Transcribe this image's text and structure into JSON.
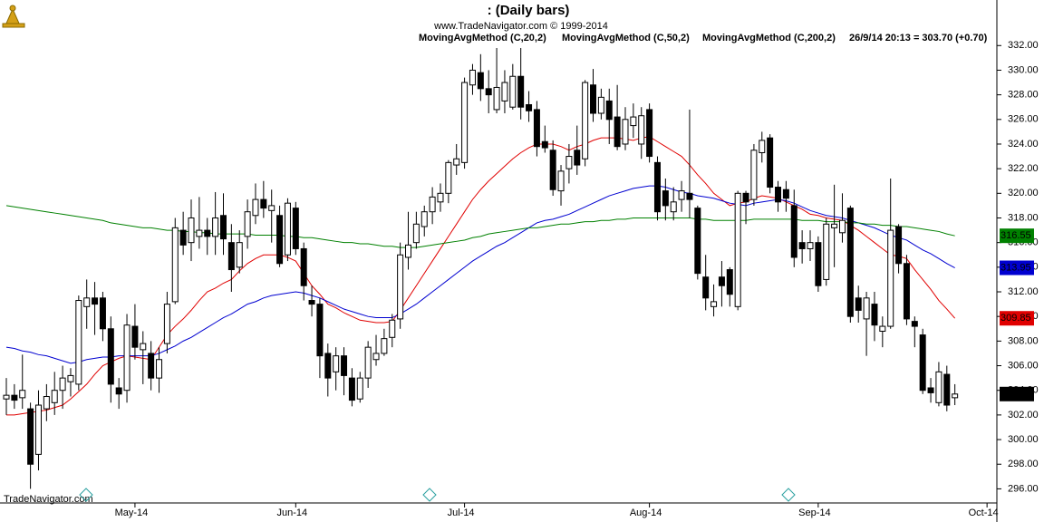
{
  "chart_data": {
    "type": "candlestick",
    "title": ":   (Daily bars)",
    "subtitle": "www.TradeNavigator.com © 1999-2014",
    "info": "26/9/14 20:13 = 303.70 (+0.70)",
    "price_label": "303.70",
    "watermark": "TradeNavigator.com",
    "up_color": "#ffffff",
    "down_color": "#000000",
    "ylim": [
      295,
      335.7
    ],
    "yticks": [
      {
        "value": 296,
        "label": "296.00"
      },
      {
        "value": 298,
        "label": "298.00"
      },
      {
        "value": 300,
        "label": "300.00"
      },
      {
        "value": 302,
        "label": "302.00"
      },
      {
        "value": 304,
        "label": "304.00"
      },
      {
        "value": 306,
        "label": "306.00"
      },
      {
        "value": 308,
        "label": "308.00"
      },
      {
        "value": 310,
        "label": "310.00"
      },
      {
        "value": 312,
        "label": "312.00"
      },
      {
        "value": 314,
        "label": "314.00"
      },
      {
        "value": 316,
        "label": "316.00"
      },
      {
        "value": 318,
        "label": "318.00"
      },
      {
        "value": 320,
        "label": "320.00"
      },
      {
        "value": 322,
        "label": "322.00"
      },
      {
        "value": 324,
        "label": "324.00"
      },
      {
        "value": 326,
        "label": "326.00"
      },
      {
        "value": 328,
        "label": "328.00"
      },
      {
        "value": 330,
        "label": "330.00"
      },
      {
        "value": 332,
        "label": "332.00"
      }
    ],
    "categories": [
      null,
      null,
      null,
      null,
      null,
      null,
      null,
      null,
      null,
      null,
      null,
      null,
      null,
      null,
      null,
      null,
      "May-14",
      null,
      null,
      null,
      null,
      null,
      null,
      null,
      null,
      null,
      null,
      null,
      null,
      null,
      null,
      null,
      null,
      null,
      null,
      null,
      "Jun-14",
      null,
      null,
      null,
      null,
      null,
      null,
      null,
      null,
      null,
      null,
      null,
      null,
      null,
      null,
      null,
      null,
      null,
      null,
      null,
      null,
      "Jul-14",
      null,
      null,
      null,
      null,
      null,
      null,
      null,
      null,
      null,
      null,
      null,
      null,
      null,
      null,
      null,
      null,
      null,
      null,
      null,
      null,
      null,
      null,
      "Aug-14",
      null,
      null,
      null,
      null,
      null,
      null,
      null,
      null,
      null,
      null,
      null,
      null,
      null,
      null,
      null,
      null,
      null,
      null,
      null,
      null,
      "Sep-14",
      null,
      null,
      null,
      null,
      null,
      null,
      null,
      null,
      null,
      null,
      null,
      null,
      null,
      null,
      null,
      null,
      null,
      null,
      null,
      null,
      "Oct-14"
    ],
    "open": [
      303.3,
      303.6,
      303.4,
      302.5,
      298.8,
      302.5,
      303,
      304,
      304.7,
      304.5,
      310.8,
      311.5,
      311.5,
      309,
      304.2,
      304,
      309.2,
      307.3,
      307,
      305,
      307.8,
      311.2,
      317,
      316,
      316.5,
      317,
      316.5,
      318.2,
      316,
      314,
      316.5,
      318.2,
      319.5,
      318.6,
      318.2,
      315,
      318.8,
      315.5,
      311.3,
      311,
      307,
      305.5,
      306.8,
      305,
      303.3,
      305,
      306.5,
      307,
      308.3,
      309.8,
      314.8,
      316,
      317.3,
      318.5,
      319.3,
      320,
      322.3,
      322.5,
      328.8,
      329.8,
      328.5,
      326.8,
      327.5,
      327,
      329.5,
      327.2,
      326.8,
      324.2,
      323.5,
      320.2,
      322,
      323.5,
      322.8,
      328.8,
      326.5,
      327.5,
      326.2,
      324,
      325.5,
      324,
      326.8,
      322.5,
      320.2,
      318.5,
      319.5,
      320,
      318.8,
      313.2,
      310.8,
      313.2,
      313.8,
      310.8,
      320,
      319.5,
      323.3,
      324.5,
      320.5,
      320.3,
      319,
      316,
      315.5,
      316,
      313,
      317.2,
      316.8,
      318.8,
      311.5,
      309.8,
      311,
      308.8,
      309.2,
      317.3,
      314.3,
      309.6,
      308.5,
      304.2,
      303,
      305.3,
      303.4,
      null,
      null,
      null,
      null
    ],
    "high": [
      305,
      304.5,
      306.9,
      303,
      304,
      304.5,
      305.5,
      306,
      305.8,
      311.7,
      313,
      312.8,
      312,
      310,
      305,
      310.2,
      311,
      308.8,
      308,
      307.5,
      312,
      318,
      318.5,
      319.5,
      319.7,
      318,
      320.1,
      320,
      317.5,
      317,
      319.5,
      320.8,
      321,
      320.3,
      319,
      319.6,
      319.3,
      316,
      312.5,
      311.5,
      307.8,
      307.5,
      307.5,
      305.8,
      305.5,
      308,
      308.5,
      309,
      310.2,
      316,
      318.5,
      318.5,
      319,
      320.5,
      320.8,
      322.7,
      324,
      329.4,
      330.5,
      331.3,
      330,
      331.8,
      330,
      330.5,
      331.8,
      328.3,
      327.5,
      325.5,
      324.3,
      322.3,
      324,
      325.5,
      329.2,
      330.1,
      328.5,
      328.5,
      328.8,
      327,
      327.3,
      327,
      327.3,
      323,
      321.2,
      320.5,
      321,
      326.8,
      319,
      315,
      312.6,
      314.5,
      314,
      320.2,
      320.2,
      324,
      325,
      324.8,
      321,
      321,
      320.3,
      317,
      317,
      316.5,
      318,
      320.7,
      320,
      319,
      312.5,
      312,
      312,
      310,
      321.2,
      317.5,
      315,
      310,
      309,
      305,
      306.3,
      306,
      304.5,
      null,
      null,
      null,
      null
    ],
    "low": [
      302,
      302.5,
      302.5,
      296,
      297.5,
      301.5,
      302,
      302.5,
      303.5,
      304,
      309,
      308.5,
      308,
      303,
      302.5,
      303,
      306.5,
      304.5,
      304,
      303.8,
      307,
      311,
      315,
      314.5,
      315.5,
      315,
      315,
      315,
      312,
      313.5,
      315.5,
      317.5,
      318,
      316,
      314,
      314.5,
      315,
      311.3,
      310,
      305,
      303.5,
      304,
      303.6,
      302.7,
      303,
      304.2,
      306,
      306.8,
      307.5,
      309,
      313.8,
      315.5,
      316.5,
      317.5,
      318.5,
      319.2,
      321.5,
      322,
      328,
      327.5,
      326.5,
      326.5,
      326.5,
      326.8,
      326,
      325.8,
      323,
      323.3,
      319.8,
      319,
      320.8,
      321.5,
      322.2,
      325.8,
      326,
      324,
      323.5,
      323.5,
      324.5,
      322.8,
      322.5,
      317.8,
      317.8,
      317.8,
      318.5,
      318,
      313,
      310.5,
      310,
      310.8,
      310.8,
      310.5,
      317.5,
      319,
      322.5,
      320,
      318.5,
      318.5,
      314,
      314.3,
      314.5,
      312,
      312.5,
      314,
      316,
      309.5,
      309.5,
      306.8,
      308,
      307.5,
      309,
      313.5,
      309.3,
      307.5,
      303.7,
      303,
      302.7,
      302.3,
      302.8,
      null,
      null,
      null,
      null
    ],
    "close": [
      303.6,
      303.2,
      304,
      298,
      302.8,
      303.5,
      304,
      305,
      305.2,
      311.3,
      311.5,
      311,
      309,
      304.5,
      303.7,
      309.3,
      307.5,
      307.8,
      305,
      306.5,
      311,
      317.2,
      315.8,
      318,
      317,
      316.5,
      318,
      316.3,
      313.8,
      316,
      318.5,
      319.5,
      318.8,
      319,
      314.3,
      319.2,
      315.5,
      312.5,
      311,
      306.8,
      305,
      306.8,
      305.2,
      303.2,
      305,
      307.5,
      307,
      308.2,
      309.7,
      315,
      315.8,
      317.5,
      318.5,
      319.7,
      320,
      322.5,
      322.8,
      329,
      330,
      328.5,
      328,
      328.6,
      329,
      329.5,
      327,
      326.7,
      323.8,
      323.7,
      320.3,
      321.8,
      323,
      322.3,
      329,
      326.5,
      327.8,
      326,
      323.8,
      326,
      326.2,
      326.3,
      323,
      318.5,
      319,
      319.3,
      320.2,
      319.5,
      313.5,
      311.5,
      311.2,
      312.5,
      311.8,
      320,
      319.3,
      323.5,
      324.3,
      320.5,
      319.3,
      319.6,
      314.8,
      315.5,
      316,
      312.5,
      317.5,
      317.5,
      317.8,
      310,
      310.5,
      311.5,
      309.3,
      309.2,
      317,
      314.3,
      309.8,
      309.2,
      304,
      303.8,
      305.5,
      302.8,
      303.7,
      null,
      null,
      null,
      null
    ],
    "series": [
      {
        "name": "MovingAvgMethod (C,20,2)",
        "color": "#e00000",
        "values": [
          302.0,
          302.0,
          302.1,
          302.2,
          302.3,
          302.4,
          302.6,
          302.8,
          303.3,
          303.9,
          304.5,
          305.3,
          306.0,
          306.3,
          306.6,
          306.8,
          306.7,
          306.6,
          306.5,
          307.5,
          308.5,
          309.2,
          309.8,
          310.5,
          311.3,
          312.0,
          312.3,
          312.7,
          313.0,
          313.7,
          314.3,
          314.7,
          315.0,
          315.0,
          315.0,
          314.8,
          314.5,
          313.5,
          312.5,
          311.8,
          311.0,
          310.7,
          310.3,
          310.0,
          309.7,
          309.6,
          309.5,
          309.5,
          309.6,
          310.5,
          311.5,
          312.5,
          313.5,
          314.5,
          315.5,
          316.5,
          317.5,
          318.5,
          319.5,
          320.3,
          321.0,
          321.6,
          322.2,
          322.8,
          323.3,
          323.7,
          324.0,
          324.0,
          324.0,
          323.8,
          323.5,
          323.8,
          324.0,
          324.3,
          324.5,
          324.5,
          324.5,
          324.4,
          324.3,
          324.5,
          324.6,
          324.2,
          323.8,
          323.4,
          323.0,
          322.3,
          321.5,
          320.8,
          320.0,
          319.5,
          319.0,
          319.2,
          319.3,
          319.6,
          319.8,
          319.7,
          319.6,
          319.3,
          319.0,
          318.7,
          318.3,
          318.2,
          318.0,
          317.9,
          317.8,
          317.4,
          317.0,
          316.5,
          316.0,
          315.5,
          315.0,
          314.9,
          314.7,
          313.8,
          313.0,
          312.2,
          311.3,
          310.6,
          309.85,
          null,
          null,
          null,
          null
        ]
      },
      {
        "name": "MovingAvgMethod (C,50,2)",
        "color": "#0000d0",
        "values": [
          307.5,
          307.4,
          307.2,
          307.1,
          306.9,
          306.8,
          306.6,
          306.4,
          306.2,
          306.3,
          306.5,
          306.6,
          306.7,
          306.7,
          306.8,
          306.8,
          306.8,
          306.8,
          306.8,
          307.0,
          307.3,
          307.6,
          308.0,
          308.3,
          308.7,
          309.1,
          309.5,
          309.9,
          310.2,
          310.6,
          311.0,
          311.2,
          311.5,
          311.7,
          311.8,
          311.9,
          312.0,
          311.9,
          311.7,
          311.5,
          311.2,
          310.9,
          310.6,
          310.4,
          310.2,
          310.0,
          309.9,
          309.9,
          309.9,
          310.2,
          310.6,
          311.0,
          311.5,
          312.0,
          312.5,
          313.0,
          313.5,
          314.0,
          314.5,
          314.9,
          315.3,
          315.7,
          316.0,
          316.4,
          316.8,
          317.2,
          317.6,
          317.8,
          317.9,
          318.1,
          318.3,
          318.6,
          318.9,
          319.2,
          319.5,
          319.8,
          320.0,
          320.2,
          320.4,
          320.5,
          320.6,
          320.6,
          320.5,
          320.3,
          320.1,
          320.0,
          319.8,
          319.7,
          319.6,
          319.4,
          319.2,
          319.1,
          319.0,
          319.2,
          319.3,
          319.4,
          319.5,
          319.4,
          319.2,
          318.9,
          318.6,
          318.4,
          318.2,
          318.1,
          318.0,
          317.8,
          317.6,
          317.4,
          317.2,
          316.9,
          316.6,
          316.4,
          316.2,
          315.8,
          315.4,
          315.1,
          314.7,
          314.3,
          313.95,
          null,
          null,
          null,
          null
        ]
      },
      {
        "name": "MovingAvgMethod (C,200,2)",
        "color": "#008000",
        "values": [
          319.0,
          318.9,
          318.8,
          318.7,
          318.6,
          318.5,
          318.4,
          318.3,
          318.2,
          318.1,
          318.0,
          317.9,
          317.8,
          317.6,
          317.5,
          317.4,
          317.3,
          317.2,
          317.2,
          317.1,
          317.0,
          317.0,
          316.9,
          316.9,
          316.8,
          316.8,
          316.7,
          316.7,
          316.7,
          316.7,
          316.7,
          316.6,
          316.6,
          316.6,
          316.6,
          316.5,
          316.5,
          316.4,
          316.4,
          316.3,
          316.2,
          316.1,
          316.0,
          316.0,
          315.9,
          315.9,
          315.8,
          315.7,
          315.7,
          315.6,
          315.6,
          315.6,
          315.7,
          315.8,
          315.9,
          316.0,
          316.1,
          316.2,
          316.4,
          316.5,
          316.7,
          316.8,
          316.9,
          317.0,
          317.1,
          317.2,
          317.2,
          317.3,
          317.4,
          317.5,
          317.5,
          317.6,
          317.7,
          317.7,
          317.8,
          317.8,
          317.9,
          317.9,
          318.0,
          318.0,
          318.0,
          318.0,
          318.0,
          318.0,
          318.0,
          318.0,
          317.9,
          317.9,
          317.8,
          317.8,
          317.8,
          317.8,
          317.8,
          317.9,
          317.9,
          317.9,
          317.9,
          317.9,
          317.9,
          317.8,
          317.8,
          317.8,
          317.7,
          317.7,
          317.7,
          317.6,
          317.6,
          317.5,
          317.5,
          317.4,
          317.4,
          317.3,
          317.3,
          317.2,
          317.1,
          317.0,
          316.9,
          316.7,
          316.55,
          null,
          null,
          null,
          null
        ]
      }
    ]
  }
}
